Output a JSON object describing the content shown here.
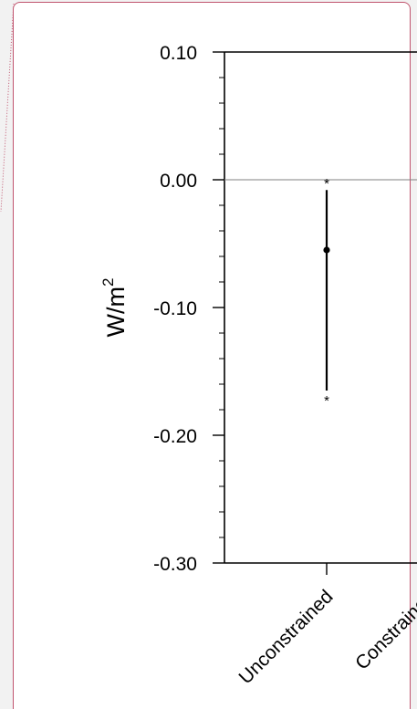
{
  "colors": {
    "card_border": "#c0546e",
    "axis": "#000000",
    "zero_line": "#808080"
  },
  "chart_data": {
    "type": "errorbar",
    "ylabel_base": "W/m",
    "ylabel_superscript": "2",
    "ylim": [
      -0.3,
      0.1
    ],
    "yticks": [
      0.1,
      0.0,
      -0.1,
      -0.2,
      -0.3
    ],
    "ytick_labels": [
      "0.10",
      "0.00",
      "-0.10",
      "-0.20",
      "-0.30"
    ],
    "ytick_minor_step": 0.02,
    "categories": [
      "Unconstrained",
      "Constrained"
    ],
    "points": [
      {
        "category": "Unconstrained",
        "value": -0.055,
        "lower": -0.165,
        "upper": -0.008,
        "extreme_min": -0.17,
        "extreme_max": 0.0
      }
    ],
    "zero_line": true,
    "grid": false
  }
}
